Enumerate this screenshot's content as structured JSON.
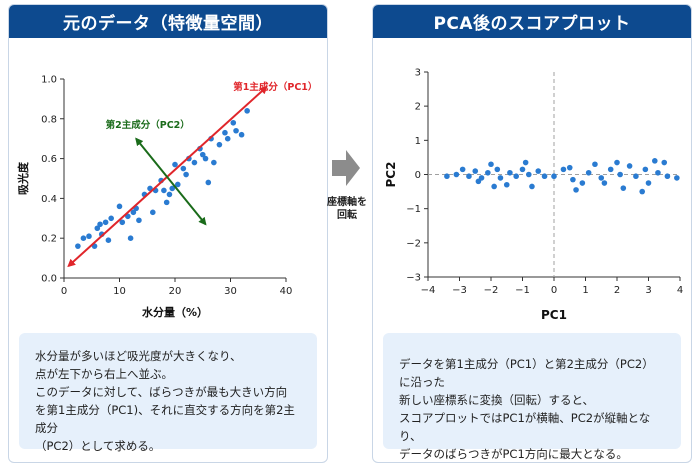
{
  "left_panel": {
    "title": "元のデータ（特徴量空間）",
    "note_lines": [
      "水分量が多いほど吸光度が大きくなり、",
      "点が左下から右上へ並ぶ。",
      "このデータに対して、ばらつきが最も大きい方向",
      "を第1主成分（PC1)、それに直交する方向を第2主成分",
      "（PC2）として求める。"
    ]
  },
  "right_panel": {
    "title": "PCA後のスコアプロット",
    "note_lines": [
      "データを第1主成分（PC1）と第2主成分（PC2）に沿った",
      "新しい座標系に変換（回転）すると、",
      "スコアプロットではPC1が横軸、PC2が縦軸となり、",
      "データのばらつきがPC1方向に最大となる。"
    ]
  },
  "middle": {
    "label_lines": [
      "座標軸を",
      "回転"
    ]
  },
  "colors": {
    "header": "#0d4a8f",
    "point": "#2a7bd1",
    "pc1": "#e0262b",
    "pc2": "#1a6b1a",
    "note_bg": "#e6f0fb"
  },
  "chart_data": [
    {
      "type": "scatter",
      "xlabel": "水分量（%）",
      "ylabel": "吸光度",
      "xlim": [
        0,
        40
      ],
      "ylim": [
        0.0,
        1.0
      ],
      "xticks": [
        "0",
        "10",
        "20",
        "30",
        "40"
      ],
      "yticks": [
        "0.0",
        "0.2",
        "0.4",
        "0.6",
        "0.8",
        "1.0"
      ],
      "points": [
        [
          2.5,
          0.16
        ],
        [
          3.5,
          0.2
        ],
        [
          4.5,
          0.21
        ],
        [
          5.5,
          0.16
        ],
        [
          6.0,
          0.25
        ],
        [
          6.5,
          0.27
        ],
        [
          6.8,
          0.22
        ],
        [
          7.5,
          0.28
        ],
        [
          8.0,
          0.19
        ],
        [
          8.5,
          0.3
        ],
        [
          10.0,
          0.36
        ],
        [
          10.5,
          0.28
        ],
        [
          11.5,
          0.31
        ],
        [
          12.0,
          0.2
        ],
        [
          12.5,
          0.33
        ],
        [
          13.0,
          0.35
        ],
        [
          13.5,
          0.29
        ],
        [
          14.5,
          0.42
        ],
        [
          15.5,
          0.45
        ],
        [
          16.0,
          0.33
        ],
        [
          16.5,
          0.44
        ],
        [
          17.5,
          0.49
        ],
        [
          18.0,
          0.44
        ],
        [
          18.5,
          0.38
        ],
        [
          19.0,
          0.42
        ],
        [
          19.5,
          0.45
        ],
        [
          20.0,
          0.57
        ],
        [
          20.5,
          0.47
        ],
        [
          21.5,
          0.55
        ],
        [
          22.0,
          0.52
        ],
        [
          22.5,
          0.6
        ],
        [
          23.5,
          0.58
        ],
        [
          24.5,
          0.65
        ],
        [
          25.0,
          0.62
        ],
        [
          25.5,
          0.6
        ],
        [
          26.5,
          0.7
        ],
        [
          26.0,
          0.48
        ],
        [
          27.0,
          0.58
        ],
        [
          28.0,
          0.67
        ],
        [
          29.0,
          0.73
        ],
        [
          29.5,
          0.7
        ],
        [
          30.5,
          0.78
        ],
        [
          31.0,
          0.74
        ],
        [
          32.0,
          0.72
        ],
        [
          33.0,
          0.84
        ]
      ],
      "annotations": [
        "第1主成分（PC1）",
        "第2主成分（PC2）"
      ]
    },
    {
      "type": "scatter",
      "xlabel": "PC1",
      "ylabel": "PC2",
      "xlim": [
        -4,
        4
      ],
      "ylim": [
        -3,
        3
      ],
      "xticks": [
        "−4",
        "−3",
        "−2",
        "−1",
        "0",
        "1",
        "2",
        "3",
        "4"
      ],
      "yticks": [
        "−3",
        "−2",
        "−1",
        "0",
        "1",
        "2",
        "3"
      ],
      "points": [
        [
          -3.4,
          -0.05
        ],
        [
          -3.1,
          0.0
        ],
        [
          -2.9,
          0.15
        ],
        [
          -2.7,
          -0.05
        ],
        [
          -2.5,
          0.1
        ],
        [
          -2.4,
          -0.2
        ],
        [
          -2.3,
          -0.1
        ],
        [
          -2.1,
          0.05
        ],
        [
          -2.0,
          0.3
        ],
        [
          -1.9,
          -0.35
        ],
        [
          -1.8,
          0.15
        ],
        [
          -1.7,
          -0.1
        ],
        [
          -1.5,
          -0.3
        ],
        [
          -1.4,
          0.05
        ],
        [
          -1.2,
          -0.05
        ],
        [
          -1.0,
          0.15
        ],
        [
          -0.9,
          0.35
        ],
        [
          -0.8,
          0.0
        ],
        [
          -0.7,
          -0.35
        ],
        [
          -0.5,
          0.1
        ],
        [
          -0.3,
          -0.05
        ],
        [
          0.0,
          -0.05
        ],
        [
          0.3,
          0.15
        ],
        [
          0.5,
          0.2
        ],
        [
          0.6,
          -0.15
        ],
        [
          0.7,
          -0.45
        ],
        [
          0.9,
          -0.25
        ],
        [
          1.1,
          0.05
        ],
        [
          1.3,
          0.3
        ],
        [
          1.5,
          -0.1
        ],
        [
          1.6,
          -0.25
        ],
        [
          1.8,
          0.15
        ],
        [
          2.0,
          0.35
        ],
        [
          2.1,
          0.0
        ],
        [
          2.2,
          -0.4
        ],
        [
          2.4,
          0.25
        ],
        [
          2.6,
          -0.05
        ],
        [
          2.8,
          -0.5
        ],
        [
          2.9,
          0.15
        ],
        [
          3.0,
          -0.25
        ],
        [
          3.2,
          0.4
        ],
        [
          3.3,
          0.05
        ],
        [
          3.5,
          0.35
        ],
        [
          3.6,
          -0.05
        ],
        [
          3.9,
          -0.1
        ]
      ]
    }
  ]
}
